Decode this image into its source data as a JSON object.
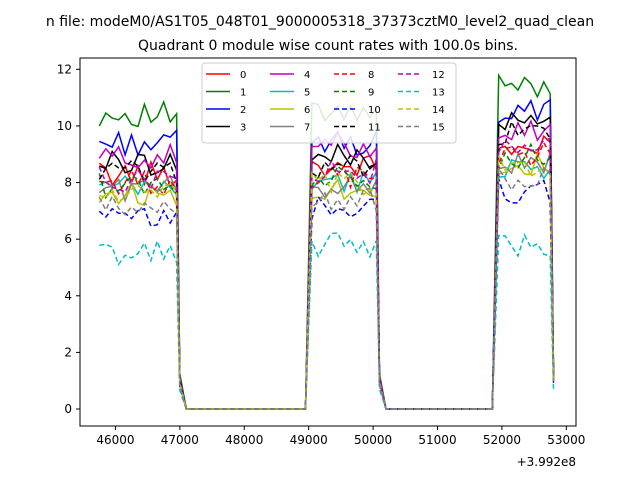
{
  "chart_data": {
    "type": "line",
    "suptitle": "n file: modeM0/AS1T05_048T01_9000005318_37373cztM0_level2_quad_clean",
    "title": "Quadrant 0 module wise count rates with 100.0s bins.",
    "xlabel": "",
    "ylabel": "",
    "x_offset_label": "+3.992e8",
    "xlim": [
      45450,
      53150
    ],
    "ylim": [
      -0.6,
      12.4
    ],
    "xticks": [
      46000,
      47000,
      48000,
      49000,
      50000,
      51000,
      52000,
      53000
    ],
    "xtick_labels": [
      "46000",
      "47000",
      "48000",
      "49000",
      "50000",
      "51000",
      "52000",
      "53000"
    ],
    "yticks": [
      0,
      2,
      4,
      6,
      8,
      10,
      12
    ],
    "ytick_labels": [
      "0",
      "2",
      "4",
      "6",
      "8",
      "10",
      "12"
    ],
    "grid": false,
    "legend_position": "top-center",
    "legend_columns": 4,
    "x_segments": [
      {
        "start": 45750,
        "end": 46950
      },
      {
        "start": 49050,
        "end": 50050
      },
      {
        "start": 51950,
        "end": 52750
      }
    ],
    "series": [
      {
        "name": "0",
        "color": "#ff0000",
        "dash": "solid",
        "levels": [
          8.3,
          8.6,
          9.2
        ]
      },
      {
        "name": "1",
        "color": "#008000",
        "dash": "solid",
        "levels": [
          10.4,
          10.4,
          11.4
        ]
      },
      {
        "name": "2",
        "color": "#0000ff",
        "dash": "solid",
        "levels": [
          9.4,
          9.4,
          10.5
        ]
      },
      {
        "name": "3",
        "color": "#000000",
        "dash": "solid",
        "levels": [
          8.7,
          8.9,
          10.1
        ]
      },
      {
        "name": "4",
        "color": "#c000c0",
        "dash": "solid",
        "levels": [
          8.9,
          9.3,
          9.9
        ]
      },
      {
        "name": "5",
        "color": "#00bfbf",
        "dash": "solid",
        "levels": [
          7.8,
          8.0,
          8.6
        ]
      },
      {
        "name": "6",
        "color": "#bfbf00",
        "dash": "solid",
        "levels": [
          7.6,
          7.8,
          8.6
        ]
      },
      {
        "name": "7",
        "color": "#808080",
        "dash": "solid",
        "levels": [
          7.8,
          7.9,
          8.7
        ]
      },
      {
        "name": "8",
        "color": "#ff0000",
        "dash": "dashed",
        "levels": [
          8.0,
          8.2,
          9.0
        ]
      },
      {
        "name": "9",
        "color": "#008000",
        "dash": "dashed",
        "levels": [
          7.9,
          8.2,
          8.9
        ]
      },
      {
        "name": "10",
        "color": "#0000ff",
        "dash": "dashed",
        "levels": [
          6.7,
          7.1,
          7.7
        ]
      },
      {
        "name": "11",
        "color": "#000000",
        "dash": "dashed",
        "levels": [
          8.4,
          8.6,
          9.7
        ]
      },
      {
        "name": "12",
        "color": "#c000c0",
        "dash": "dashed",
        "levels": [
          8.1,
          8.4,
          9.2
        ]
      },
      {
        "name": "13",
        "color": "#00bfbf",
        "dash": "dashed",
        "levels": [
          5.5,
          5.8,
          5.8
        ]
      },
      {
        "name": "14",
        "color": "#bfbf00",
        "dash": "dashed",
        "levels": [
          7.6,
          7.9,
          8.6
        ]
      },
      {
        "name": "15",
        "color": "#808080",
        "dash": "dashed",
        "levels": [
          7.1,
          7.4,
          8.1
        ]
      }
    ]
  }
}
